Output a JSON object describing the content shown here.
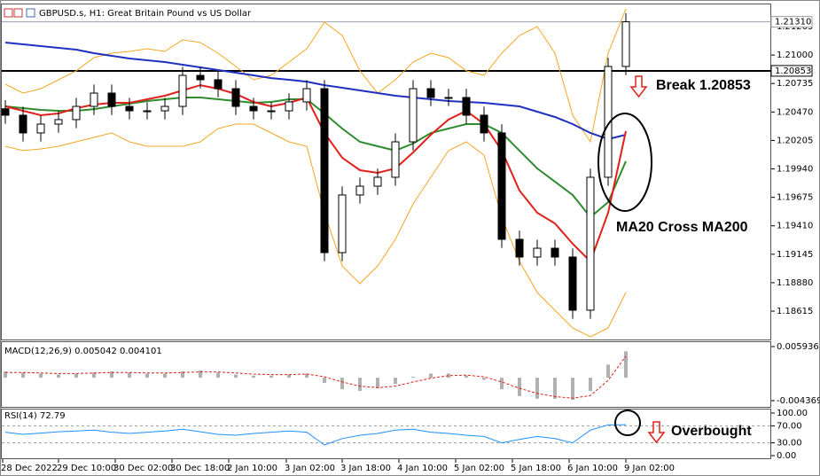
{
  "chart_data": [
    {
      "type": "candlestick",
      "title": "GBPUSD.s, H1:  Great Britain Pound vs US Dollar",
      "open": [
        1.205,
        1.2044,
        1.20275,
        1.20357,
        1.20399,
        1.20522,
        1.20646,
        1.20522,
        1.20481,
        1.20481,
        1.20522,
        1.20811,
        1.2077,
        1.20687,
        1.20522,
        1.20481,
        1.20481,
        1.20564,
        1.20687,
        1.1916,
        1.19697,
        1.19779,
        1.19862,
        1.20192,
        1.20687,
        1.20605,
        1.20605,
        1.2044,
        1.20275,
        1.19284,
        1.19119,
        1.19201,
        1.19119,
        1.18624,
        1.19862,
        1.20894
      ],
      "high": [
        1.2058,
        1.2052,
        1.20437,
        1.20479,
        1.20602,
        1.20726,
        1.20726,
        1.20602,
        1.20561,
        1.20602,
        1.20891,
        1.20891,
        1.2085,
        1.20767,
        1.20602,
        1.20561,
        1.20644,
        1.20767,
        1.20767,
        1.19777,
        1.19859,
        1.19942,
        1.20272,
        1.20767,
        1.20767,
        1.20685,
        1.20685,
        1.2052,
        1.20355,
        1.19364,
        1.19281,
        1.19281,
        1.19199,
        1.19942,
        1.20974,
        1.2139
      ],
      "low": [
        1.2036,
        1.20195,
        1.20195,
        1.20277,
        1.20319,
        1.20442,
        1.20442,
        1.20401,
        1.20401,
        1.20401,
        1.20442,
        1.2069,
        1.20607,
        1.20442,
        1.20401,
        1.20401,
        1.20401,
        1.20484,
        1.1908,
        1.1908,
        1.19617,
        1.19699,
        1.19782,
        1.20112,
        1.20525,
        1.20525,
        1.2036,
        1.20195,
        1.19204,
        1.19039,
        1.19039,
        1.19039,
        1.18544,
        1.18544,
        1.19782,
        1.20814
      ],
      "close": [
        1.2044,
        1.20275,
        1.20357,
        1.20399,
        1.20522,
        1.20646,
        1.20522,
        1.20481,
        1.20481,
        1.20522,
        1.20811,
        1.2077,
        1.20687,
        1.20522,
        1.20481,
        1.20481,
        1.20564,
        1.20687,
        1.1916,
        1.19697,
        1.19779,
        1.19862,
        1.20192,
        1.20687,
        1.20605,
        1.20605,
        1.2044,
        1.20275,
        1.19284,
        1.19119,
        1.19201,
        1.19119,
        1.18624,
        1.19862,
        1.20894,
        1.2131
      ],
      "lines": [
        {
          "color": "#f5a623",
          "values": [
            1.20729,
            1.20646,
            1.20687,
            1.2077,
            1.20853,
            1.20976,
            1.21018,
            1.21034,
            1.21059,
            1.21034,
            1.21142,
            1.21117,
            1.21018,
            1.20894,
            1.2077,
            1.20811,
            1.20935,
            1.21059,
            1.21307,
            1.21183,
            1.20853,
            1.20646,
            1.2077,
            1.20935,
            1.21018,
            1.20976,
            1.20853,
            1.20811,
            1.21018,
            1.21183,
            1.21265,
            1.21018,
            1.2044,
            1.20192,
            1.21018,
            1.2143
          ]
        },
        {
          "color": "#f5a623",
          "values": [
            1.20151,
            1.2011,
            1.20126,
            1.20151,
            1.20192,
            1.20233,
            1.20275,
            1.20192,
            1.20151,
            1.20151,
            1.20151,
            1.20192,
            1.20316,
            1.20357,
            1.20357,
            1.20275,
            1.20192,
            1.20151,
            1.19532,
            1.19036,
            1.18871,
            1.19036,
            1.19284,
            1.19614,
            1.19862,
            1.2011,
            1.20192,
            1.20068,
            1.1949,
            1.19078,
            1.18789,
            1.18623,
            1.18458,
            1.18376,
            1.18458,
            1.18789
          ]
        },
        {
          "color": "#1f2fbf",
          "values": [
            1.21117,
            1.211,
            1.21084,
            1.21067,
            1.21051,
            1.21018,
            1.20993,
            1.20968,
            1.20952,
            1.20935,
            1.2091,
            1.20886,
            1.20861,
            1.20836,
            1.20811,
            1.20786,
            1.2077,
            1.20753,
            1.2072,
            1.20696,
            1.20671,
            1.20646,
            1.20621,
            1.20605,
            1.20588,
            1.20572,
            1.20564,
            1.20555,
            1.20539,
            1.20522,
            1.20473,
            1.20423,
            1.20357,
            1.20275,
            1.20217,
            1.20258
          ]
        },
        {
          "color": "#2e8b2e",
          "values": [
            1.20522,
            1.20506,
            1.20489,
            1.20481,
            1.20481,
            1.20497,
            1.20522,
            1.20547,
            1.20572,
            1.20588,
            1.20605,
            1.20605,
            1.20588,
            1.20572,
            1.20555,
            1.20564,
            1.20588,
            1.20588,
            1.20456,
            1.20316,
            1.20192,
            1.20151,
            1.2011,
            1.20176,
            1.20275,
            1.20316,
            1.20357,
            1.20357,
            1.20275,
            1.2011,
            1.19944,
            1.19821,
            1.19697,
            1.1949,
            1.1963,
            1.20011
          ]
        },
        {
          "color": "#e0201a",
          "values": [
            1.20522,
            1.20481,
            1.2044,
            1.20456,
            1.20506,
            1.20539,
            1.20555,
            1.20555,
            1.20588,
            1.20621,
            1.20671,
            1.2072,
            1.20687,
            1.20638,
            1.20564,
            1.20522,
            1.20555,
            1.20605,
            1.20275,
            1.20044,
            1.19928,
            1.19903,
            1.19944,
            1.20093,
            1.20258,
            1.20399,
            1.20481,
            1.20357,
            1.2011,
            1.19738,
            1.19532,
            1.19432,
            1.19243,
            1.19078,
            1.19532,
            1.20291
          ]
        }
      ],
      "ylim": [
        1.18351,
        1.21447
      ],
      "yticks": [
        1.21265,
        {
          "value": 1.21,
          "label": "1.21000"
        },
        1.20735,
        {
          "value": 1.2047,
          "label": "1.20470"
        },
        1.20205,
        {
          "value": 1.1994,
          "label": "1.19940"
        },
        1.19675,
        {
          "value": 1.1941,
          "label": "1.19410"
        },
        1.19145,
        {
          "value": 1.1888,
          "label": "1.18880"
        },
        1.18615
      ],
      "hlines": [
        {
          "value": 1.2131,
          "label": "1.21310",
          "color": "#9aa0a6"
        },
        {
          "value": 1.20853,
          "label": "1.20853",
          "color": "#000000"
        }
      ],
      "annotations": [
        "Break 1.20853",
        "MA20 Cross MA200",
        "Overbought"
      ]
    },
    {
      "type": "macd",
      "title": "MACD(12,26,9) 0.005042 0.004101",
      "histogram": {
        "color": "#b0b0b0",
        "values": [
          0.0012,
          0.001,
          0.0008,
          0.0006,
          0.0008,
          0.001,
          0.0012,
          0.001,
          0.0008,
          0.0008,
          0.0012,
          0.0014,
          0.001,
          0.0006,
          0.0004,
          0.0004,
          0.0006,
          0.0008,
          -0.001,
          -0.0022,
          -0.0025,
          -0.002,
          -0.0012,
          0.0002,
          0.0008,
          0.0008,
          0.0004,
          -0.0004,
          -0.0022,
          -0.0035,
          -0.004,
          -0.004,
          -0.0042,
          -0.0025,
          0.0025,
          0.005042
        ]
      },
      "signal": {
        "color": "#e0201a",
        "values": [
          0.001,
          0.001,
          0.0009,
          0.0008,
          0.0008,
          0.0009,
          0.001,
          0.001,
          0.0009,
          0.0009,
          0.001,
          0.0011,
          0.0011,
          0.0009,
          0.0007,
          0.0006,
          0.0006,
          0.0007,
          0.0002,
          -0.0008,
          -0.0016,
          -0.0019,
          -0.0016,
          -0.0008,
          -0.0001,
          0.0004,
          0.0005,
          0.0002,
          -0.0008,
          -0.002,
          -0.003,
          -0.0036,
          -0.0039,
          -0.0034,
          -0.0005,
          0.004101
        ]
      },
      "ylim": [
        -0.005721,
        0.00695
      ],
      "yticks": [
        0.005936,
        -0.004369
      ]
    },
    {
      "type": "line",
      "title": "RSI(14) 72.79",
      "color": "#1e90ff",
      "values": [
        55,
        50,
        53,
        56,
        58,
        60,
        55,
        52,
        55,
        58,
        62,
        56,
        50,
        48,
        52,
        55,
        58,
        55,
        25,
        40,
        48,
        52,
        60,
        62,
        55,
        52,
        48,
        45,
        30,
        38,
        45,
        40,
        30,
        60,
        72,
        72.79
      ],
      "ylim": [
        -8.3,
        108.3
      ],
      "yticks": [
        {
          "value": 100,
          "label": "100.00"
        },
        {
          "value": 70,
          "label": "70.00"
        },
        {
          "value": 30,
          "label": "30.00"
        },
        {
          "value": 0,
          "label": "0.00"
        }
      ],
      "levels": [
        70,
        30
      ],
      "xlim": [
        -0.3,
        43.2
      ],
      "xticks": [
        {
          "value": -0.15,
          "label": "28 Dec 2022"
        },
        {
          "value": 3.0,
          "label": "29 Dec 10:00"
        },
        {
          "value": 6.2,
          "label": "30 Dec 02:00"
        },
        {
          "value": 9.4,
          "label": "30 Dec 18:00"
        },
        {
          "value": 12.6,
          "label": "2 Jan 10:00"
        },
        {
          "value": 15.85,
          "label": "3 Jan 02:00"
        },
        {
          "value": 19.0,
          "label": "3 Jan 18:00"
        },
        {
          "value": 22.2,
          "label": "4 Jan 10:00"
        },
        {
          "value": 25.4,
          "label": "5 Jan 02:00"
        },
        {
          "value": 28.6,
          "label": "5 Jan 18:00"
        },
        {
          "value": 31.8,
          "label": "6 Jan 10:00"
        },
        {
          "value": 35.0,
          "label": "9 Jan 02:00"
        }
      ]
    }
  ]
}
